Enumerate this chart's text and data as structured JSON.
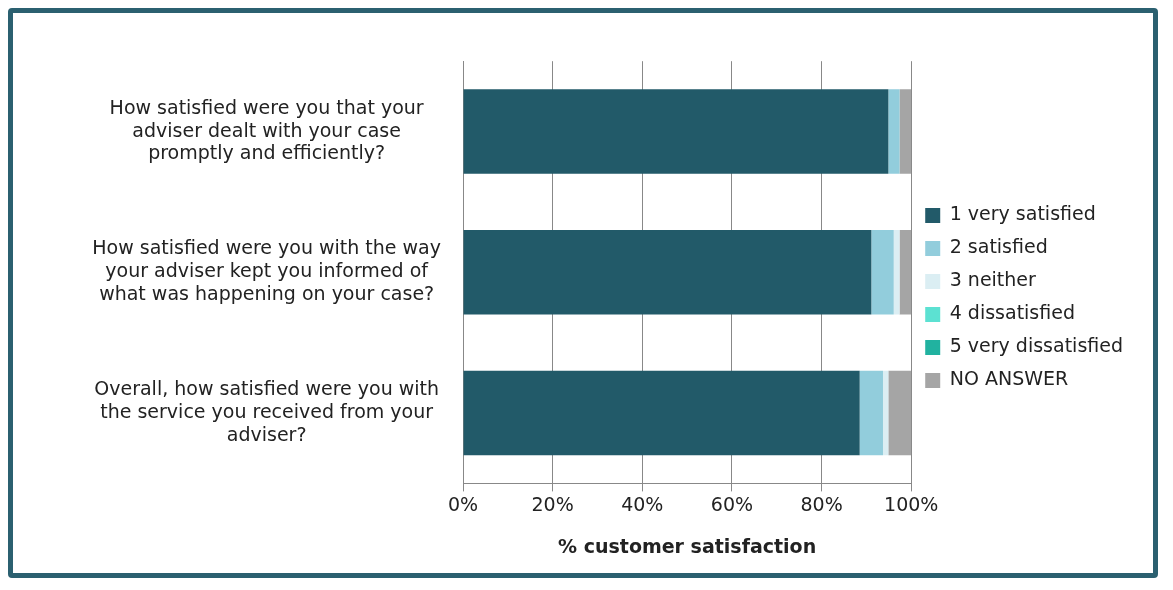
{
  "chart_data": {
    "type": "bar",
    "orientation": "horizontal",
    "stacked": true,
    "categories": [
      "How satisfied were you that your adviser dealt with your case promptly and efficiently?",
      "How satisfied were you with the way your adviser kept you informed of what was happening on your case?",
      "Overall, how satisfied were you with the service you received from your adviser?"
    ],
    "series": [
      {
        "name": "1 very satisfied",
        "color": "#225a69",
        "values": [
          94.9,
          91.1,
          88.5
        ]
      },
      {
        "name": "2 satisfied",
        "color": "#92cddc",
        "values": [
          2.5,
          5.0,
          5.2
        ]
      },
      {
        "name": "3 neither",
        "color": "#dbeef3",
        "values": [
          0,
          1.3,
          1.2
        ]
      },
      {
        "name": "4 dissatisfied",
        "color": "#5ce1d2",
        "values": [
          0,
          0,
          0
        ]
      },
      {
        "name": "5 very dissatisfied",
        "color": "#21b2a0",
        "values": [
          0,
          0,
          0
        ]
      },
      {
        "name": "NO ANSWER",
        "color": "#a5a5a5",
        "values": [
          2.6,
          2.6,
          5.1
        ]
      }
    ],
    "xlabel": "% customer satisfaction",
    "xlim": [
      0,
      100
    ],
    "xticks": [
      {
        "value": 0,
        "label": "0%"
      },
      {
        "value": 20,
        "label": "20%"
      },
      {
        "value": 40,
        "label": "40%"
      },
      {
        "value": 60,
        "label": "60%"
      },
      {
        "value": 80,
        "label": "80%"
      },
      {
        "value": 100,
        "label": "100%"
      }
    ],
    "grid": "x",
    "legend": "right"
  }
}
